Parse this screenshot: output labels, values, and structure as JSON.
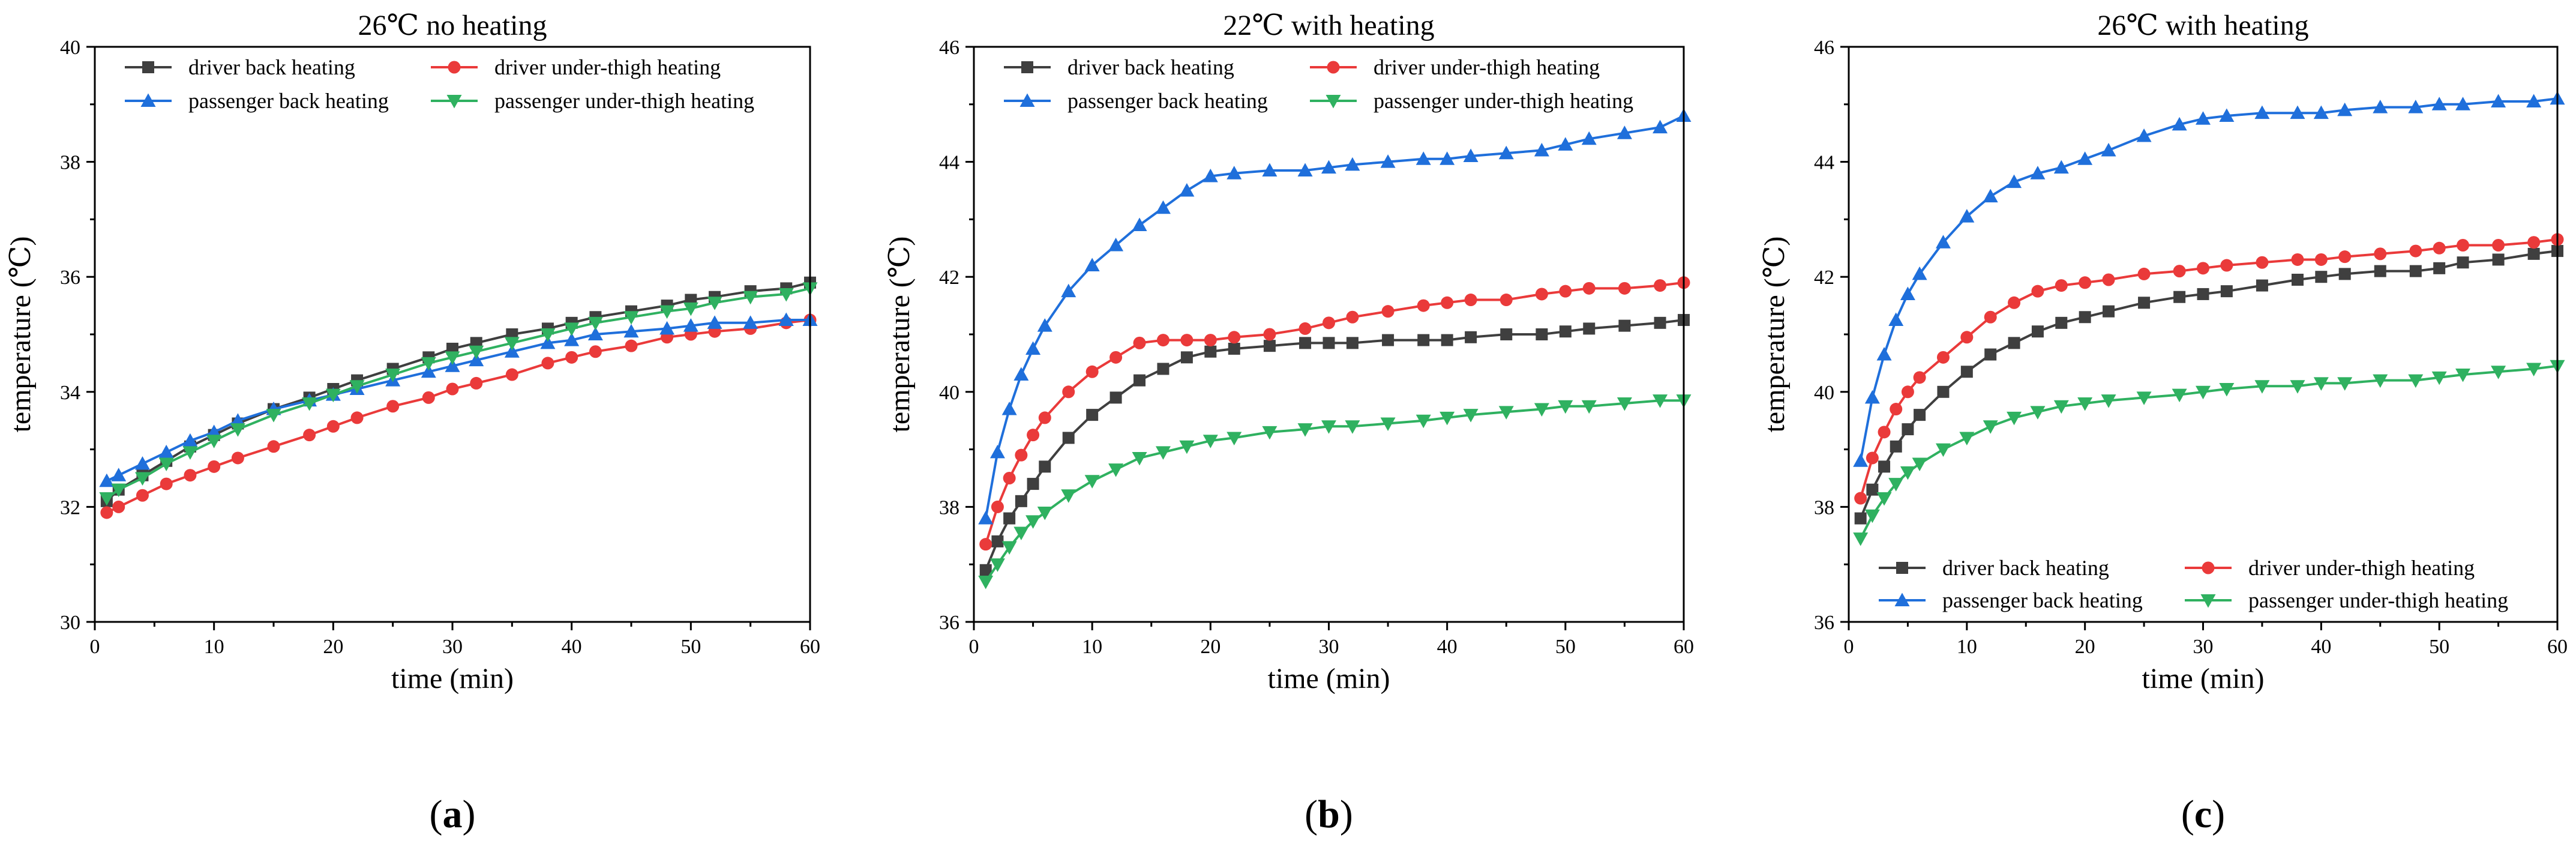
{
  "colors": {
    "driver_back": "#3f3f3f",
    "driver_thigh": "#ea3a3a",
    "passenger_back": "#1f6fdb",
    "passenger_thigh": "#2fb160",
    "axis": "#000000"
  },
  "chart_data": [
    {
      "type": "line",
      "panel_label": "a",
      "title": "26℃ no heating",
      "xlabel": "time (min)",
      "ylabel": "temperature (℃)",
      "xlim": [
        0,
        60
      ],
      "ylim": [
        30,
        40
      ],
      "xticks": [
        0,
        10,
        20,
        30,
        40,
        50,
        60
      ],
      "yticks": [
        30,
        32,
        34,
        36,
        38,
        40
      ],
      "legend_position": "top",
      "legend_layout": "two-column",
      "grid": false,
      "series": [
        {
          "name": "driver back heating",
          "color_key": "driver_back",
          "marker": "square",
          "x": [
            1,
            2,
            4,
            6,
            8,
            10,
            12,
            15,
            18,
            20,
            22,
            25,
            28,
            30,
            32,
            35,
            38,
            40,
            42,
            45,
            48,
            50,
            52,
            55,
            58,
            60
          ],
          "values": [
            32.1,
            32.3,
            32.55,
            32.8,
            33.05,
            33.25,
            33.45,
            33.7,
            33.9,
            34.05,
            34.2,
            34.4,
            34.6,
            34.75,
            34.85,
            35.0,
            35.1,
            35.2,
            35.3,
            35.4,
            35.5,
            35.6,
            35.65,
            35.75,
            35.8,
            35.9
          ]
        },
        {
          "name": "driver under-thigh heating",
          "color_key": "driver_thigh",
          "marker": "circle",
          "x": [
            1,
            2,
            4,
            6,
            8,
            10,
            12,
            15,
            18,
            20,
            22,
            25,
            28,
            30,
            32,
            35,
            38,
            40,
            42,
            45,
            48,
            50,
            52,
            55,
            58,
            60
          ],
          "values": [
            31.9,
            32.0,
            32.2,
            32.4,
            32.55,
            32.7,
            32.85,
            33.05,
            33.25,
            33.4,
            33.55,
            33.75,
            33.9,
            34.05,
            34.15,
            34.3,
            34.5,
            34.6,
            34.7,
            34.8,
            34.95,
            35.0,
            35.05,
            35.1,
            35.2,
            35.25
          ]
        },
        {
          "name": "passenger back heating",
          "color_key": "passenger_back",
          "marker": "triangle-up",
          "x": [
            1,
            2,
            4,
            6,
            8,
            10,
            12,
            15,
            18,
            20,
            22,
            25,
            28,
            30,
            32,
            35,
            38,
            40,
            42,
            45,
            48,
            50,
            52,
            55,
            58,
            60
          ],
          "values": [
            32.45,
            32.55,
            32.75,
            32.95,
            33.15,
            33.3,
            33.5,
            33.7,
            33.85,
            33.95,
            34.05,
            34.2,
            34.35,
            34.45,
            34.55,
            34.7,
            34.85,
            34.9,
            35.0,
            35.05,
            35.1,
            35.15,
            35.2,
            35.2,
            35.25,
            35.25
          ]
        },
        {
          "name": "passenger under-thigh heating",
          "color_key": "passenger_thigh",
          "marker": "triangle-down",
          "x": [
            1,
            2,
            4,
            6,
            8,
            10,
            12,
            15,
            18,
            20,
            22,
            25,
            28,
            30,
            32,
            35,
            38,
            40,
            42,
            45,
            48,
            50,
            52,
            55,
            58,
            60
          ],
          "values": [
            32.15,
            32.3,
            32.5,
            32.75,
            32.95,
            33.15,
            33.35,
            33.6,
            33.8,
            33.95,
            34.1,
            34.3,
            34.5,
            34.6,
            34.7,
            34.85,
            35.0,
            35.1,
            35.2,
            35.3,
            35.4,
            35.45,
            35.55,
            35.65,
            35.7,
            35.8
          ]
        }
      ]
    },
    {
      "type": "line",
      "panel_label": "b",
      "title": "22℃ with heating",
      "xlabel": "time (min)",
      "ylabel": "temperature (℃)",
      "xlim": [
        0,
        60
      ],
      "ylim": [
        36,
        46
      ],
      "xticks": [
        0,
        10,
        20,
        30,
        40,
        50,
        60
      ],
      "yticks": [
        36,
        38,
        40,
        42,
        44,
        46
      ],
      "legend_position": "top",
      "legend_layout": "two-column",
      "grid": false,
      "series": [
        {
          "name": "driver back heating",
          "color_key": "driver_back",
          "marker": "square",
          "x": [
            1,
            2,
            3,
            4,
            5,
            6,
            8,
            10,
            12,
            14,
            16,
            18,
            20,
            22,
            25,
            28,
            30,
            32,
            35,
            38,
            40,
            42,
            45,
            48,
            50,
            52,
            55,
            58,
            60
          ],
          "values": [
            36.9,
            37.4,
            37.8,
            38.1,
            38.4,
            38.7,
            39.2,
            39.6,
            39.9,
            40.2,
            40.4,
            40.6,
            40.7,
            40.75,
            40.8,
            40.85,
            40.85,
            40.85,
            40.9,
            40.9,
            40.9,
            40.95,
            41.0,
            41.0,
            41.05,
            41.1,
            41.15,
            41.2,
            41.25
          ]
        },
        {
          "name": "driver under-thigh heating",
          "color_key": "driver_thigh",
          "marker": "circle",
          "x": [
            1,
            2,
            3,
            4,
            5,
            6,
            8,
            10,
            12,
            14,
            16,
            18,
            20,
            22,
            25,
            28,
            30,
            32,
            35,
            38,
            40,
            42,
            45,
            48,
            50,
            52,
            55,
            58,
            60
          ],
          "values": [
            37.35,
            38.0,
            38.5,
            38.9,
            39.25,
            39.55,
            40.0,
            40.35,
            40.6,
            40.85,
            40.9,
            40.9,
            40.9,
            40.95,
            41.0,
            41.1,
            41.2,
            41.3,
            41.4,
            41.5,
            41.55,
            41.6,
            41.6,
            41.7,
            41.75,
            41.8,
            41.8,
            41.85,
            41.9
          ]
        },
        {
          "name": "passenger back heating",
          "color_key": "passenger_back",
          "marker": "triangle-up",
          "x": [
            1,
            2,
            3,
            4,
            5,
            6,
            8,
            10,
            12,
            14,
            16,
            18,
            20,
            22,
            25,
            28,
            30,
            32,
            35,
            38,
            40,
            42,
            45,
            48,
            50,
            52,
            55,
            58,
            60
          ],
          "values": [
            37.8,
            38.95,
            39.7,
            40.3,
            40.75,
            41.15,
            41.75,
            42.2,
            42.55,
            42.9,
            43.2,
            43.5,
            43.75,
            43.8,
            43.85,
            43.85,
            43.9,
            43.95,
            44.0,
            44.05,
            44.05,
            44.1,
            44.15,
            44.2,
            44.3,
            44.4,
            44.5,
            44.6,
            44.8
          ]
        },
        {
          "name": "passenger under-thigh heating",
          "color_key": "passenger_thigh",
          "marker": "triangle-down",
          "x": [
            1,
            2,
            3,
            4,
            5,
            6,
            8,
            10,
            12,
            14,
            16,
            18,
            20,
            22,
            25,
            28,
            30,
            32,
            35,
            38,
            40,
            42,
            45,
            48,
            50,
            52,
            55,
            58,
            60
          ],
          "values": [
            36.7,
            37.0,
            37.3,
            37.55,
            37.75,
            37.9,
            38.2,
            38.45,
            38.65,
            38.85,
            38.95,
            39.05,
            39.15,
            39.2,
            39.3,
            39.35,
            39.4,
            39.4,
            39.45,
            39.5,
            39.55,
            39.6,
            39.65,
            39.7,
            39.75,
            39.75,
            39.8,
            39.85,
            39.85
          ]
        }
      ]
    },
    {
      "type": "line",
      "panel_label": "c",
      "title": "26℃ with heating",
      "xlabel": "time (min)",
      "ylabel": "temperature (℃)",
      "xlim": [
        0,
        60
      ],
      "ylim": [
        36,
        46
      ],
      "xticks": [
        0,
        10,
        20,
        30,
        40,
        50,
        60
      ],
      "yticks": [
        36,
        38,
        40,
        42,
        44,
        46
      ],
      "legend_position": "bottom",
      "legend_layout": "two-column",
      "grid": false,
      "series": [
        {
          "name": "driver back heating",
          "color_key": "driver_back",
          "marker": "square",
          "x": [
            1,
            2,
            3,
            4,
            5,
            6,
            8,
            10,
            12,
            14,
            16,
            18,
            20,
            22,
            25,
            28,
            30,
            32,
            35,
            38,
            40,
            42,
            45,
            48,
            50,
            52,
            55,
            58,
            60
          ],
          "values": [
            37.8,
            38.3,
            38.7,
            39.05,
            39.35,
            39.6,
            40.0,
            40.35,
            40.65,
            40.85,
            41.05,
            41.2,
            41.3,
            41.4,
            41.55,
            41.65,
            41.7,
            41.75,
            41.85,
            41.95,
            42.0,
            42.05,
            42.1,
            42.1,
            42.15,
            42.25,
            42.3,
            42.4,
            42.45
          ]
        },
        {
          "name": "driver under-thigh heating",
          "color_key": "driver_thigh",
          "marker": "circle",
          "x": [
            1,
            2,
            3,
            4,
            5,
            6,
            8,
            10,
            12,
            14,
            16,
            18,
            20,
            22,
            25,
            28,
            30,
            32,
            35,
            38,
            40,
            42,
            45,
            48,
            50,
            52,
            55,
            58,
            60
          ],
          "values": [
            38.15,
            38.85,
            39.3,
            39.7,
            40.0,
            40.25,
            40.6,
            40.95,
            41.3,
            41.55,
            41.75,
            41.85,
            41.9,
            41.95,
            42.05,
            42.1,
            42.15,
            42.2,
            42.25,
            42.3,
            42.3,
            42.35,
            42.4,
            42.45,
            42.5,
            42.55,
            42.55,
            42.6,
            42.65
          ]
        },
        {
          "name": "passenger back heating",
          "color_key": "passenger_back",
          "marker": "triangle-up",
          "x": [
            1,
            2,
            3,
            4,
            5,
            6,
            8,
            10,
            12,
            14,
            16,
            18,
            20,
            22,
            25,
            28,
            30,
            32,
            35,
            38,
            40,
            42,
            45,
            48,
            50,
            52,
            55,
            58,
            60
          ],
          "values": [
            38.8,
            39.9,
            40.65,
            41.25,
            41.7,
            42.05,
            42.6,
            43.05,
            43.4,
            43.65,
            43.8,
            43.9,
            44.05,
            44.2,
            44.45,
            44.65,
            44.75,
            44.8,
            44.85,
            44.85,
            44.85,
            44.9,
            44.95,
            44.95,
            45.0,
            45.0,
            45.05,
            45.05,
            45.1
          ]
        },
        {
          "name": "passenger under-thigh heating",
          "color_key": "passenger_thigh",
          "marker": "triangle-down",
          "x": [
            1,
            2,
            3,
            4,
            5,
            6,
            8,
            10,
            12,
            14,
            16,
            18,
            20,
            22,
            25,
            28,
            30,
            32,
            35,
            38,
            40,
            42,
            45,
            48,
            50,
            52,
            55,
            58,
            60
          ],
          "values": [
            37.45,
            37.85,
            38.15,
            38.4,
            38.6,
            38.75,
            39.0,
            39.2,
            39.4,
            39.55,
            39.65,
            39.75,
            39.8,
            39.85,
            39.9,
            39.95,
            40.0,
            40.05,
            40.1,
            40.1,
            40.15,
            40.15,
            40.2,
            40.2,
            40.25,
            40.3,
            40.35,
            40.4,
            40.45
          ]
        }
      ]
    }
  ]
}
